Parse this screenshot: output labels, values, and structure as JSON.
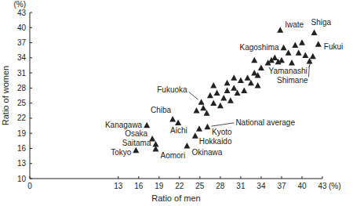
{
  "chart_data": {
    "type": "scatter",
    "xlabel": "Ratio of men",
    "ylabel": "Ratio of women",
    "x_unit_label": "(%)",
    "y_unit_label": "(%)",
    "marker": "triangle",
    "color": "#222222",
    "xlim": [
      0,
      43
    ],
    "xticks": [
      0,
      13,
      16,
      19,
      22,
      25,
      28,
      31,
      34,
      37,
      40,
      43
    ],
    "ylim": [
      10,
      43
    ],
    "yticks": [
      10,
      13,
      16,
      19,
      22,
      25,
      28,
      31,
      34,
      37,
      40,
      43
    ],
    "grid": false,
    "labels": [
      "Tokyo",
      "Osaka",
      "Saitama",
      "Aomori",
      "Kanagawa",
      "Chiba",
      "Aichi",
      "Okinawa",
      "Hokkaido",
      "Kyoto",
      "Fukuoka",
      "National average",
      "Iwate",
      "Shiga",
      "Kagoshima",
      "Fukui",
      "Yamanashi",
      "Shimane",
      null,
      null,
      null,
      null,
      null,
      null,
      null,
      null,
      null,
      null,
      null,
      null,
      null,
      null,
      null,
      null,
      null,
      null,
      null,
      null,
      null,
      null,
      null,
      null,
      null,
      null,
      null,
      null,
      null,
      null,
      null,
      null,
      null,
      null,
      null
    ],
    "x": [
      15.6,
      18.0,
      18.5,
      18.5,
      17.2,
      21.0,
      21.8,
      23.1,
      24.3,
      24.9,
      25.2,
      26.1,
      36.8,
      41.8,
      37.3,
      42.4,
      41.6,
      41.1,
      24.5,
      25.5,
      26,
      26.5,
      27,
      27.5,
      28,
      28.5,
      29,
      29.5,
      30,
      30.5,
      31,
      31.5,
      32,
      32.5,
      33,
      33.5,
      34,
      33.5,
      35,
      35.5,
      36,
      36.5,
      37,
      38,
      38.5,
      39,
      39.5,
      40,
      40.5,
      30,
      29,
      33,
      27
    ],
    "values": [
      15.6,
      17.9,
      16.8,
      15.9,
      20.6,
      21.8,
      21.1,
      16.5,
      18.5,
      19.9,
      25.2,
      20.3,
      39.5,
      39.0,
      36.0,
      36.7,
      34.3,
      33.3,
      23.5,
      24,
      23,
      26.5,
      25,
      27,
      24.5,
      26,
      27.5,
      25.5,
      28,
      27,
      29.5,
      27.5,
      30,
      29,
      31,
      28.5,
      32,
      30.5,
      33,
      33.5,
      34,
      33.2,
      33.5,
      35,
      33,
      36.5,
      35,
      37,
      34.5,
      30,
      29,
      33.5,
      28.5
    ]
  }
}
